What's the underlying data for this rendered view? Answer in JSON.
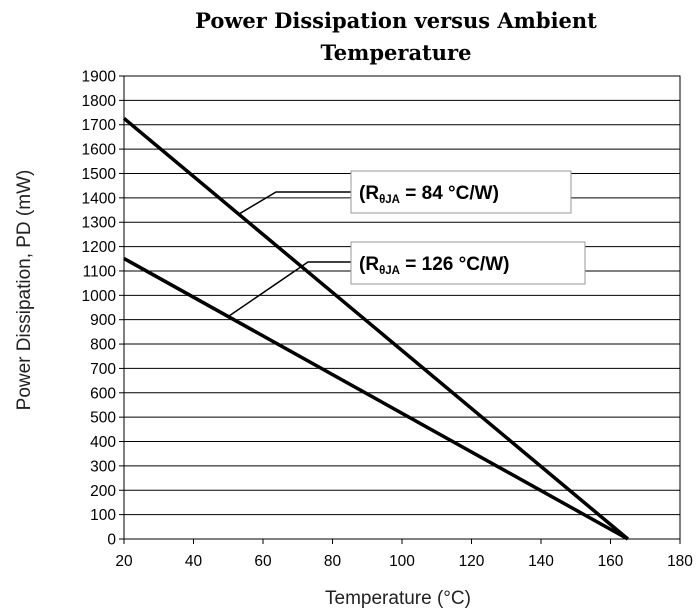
{
  "chart_data": {
    "type": "line",
    "title": [
      "Power Dissipation versus Ambient",
      "Temperature"
    ],
    "xlabel": "Temperature (°C)",
    "ylabel": "Power Dissipation, PD (mW)",
    "xlim": [
      20,
      180
    ],
    "ylim": [
      0,
      1900
    ],
    "xticks": [
      20,
      40,
      60,
      80,
      100,
      120,
      140,
      160,
      180
    ],
    "yticks": [
      0,
      100,
      200,
      300,
      400,
      500,
      600,
      700,
      800,
      900,
      1000,
      1100,
      1200,
      1300,
      1400,
      1500,
      1600,
      1700,
      1800,
      1900
    ],
    "grid": "horizontal",
    "series": [
      {
        "name": "(RθJA = 84 °C/W)",
        "label_main": "(R",
        "label_sub": "θJA",
        "label_rest": " = 84 °C/W)",
        "x": [
          20,
          165
        ],
        "y": [
          1726,
          0
        ],
        "callout_point": [
          53,
          1333
        ]
      },
      {
        "name": "(RθJA = 126 °C/W)",
        "label_main": "(R",
        "label_sub": "θJA",
        "label_rest": " = 126 °C/W)",
        "x": [
          20,
          165
        ],
        "y": [
          1151,
          0
        ],
        "callout_point": [
          50,
          913
        ]
      }
    ]
  }
}
